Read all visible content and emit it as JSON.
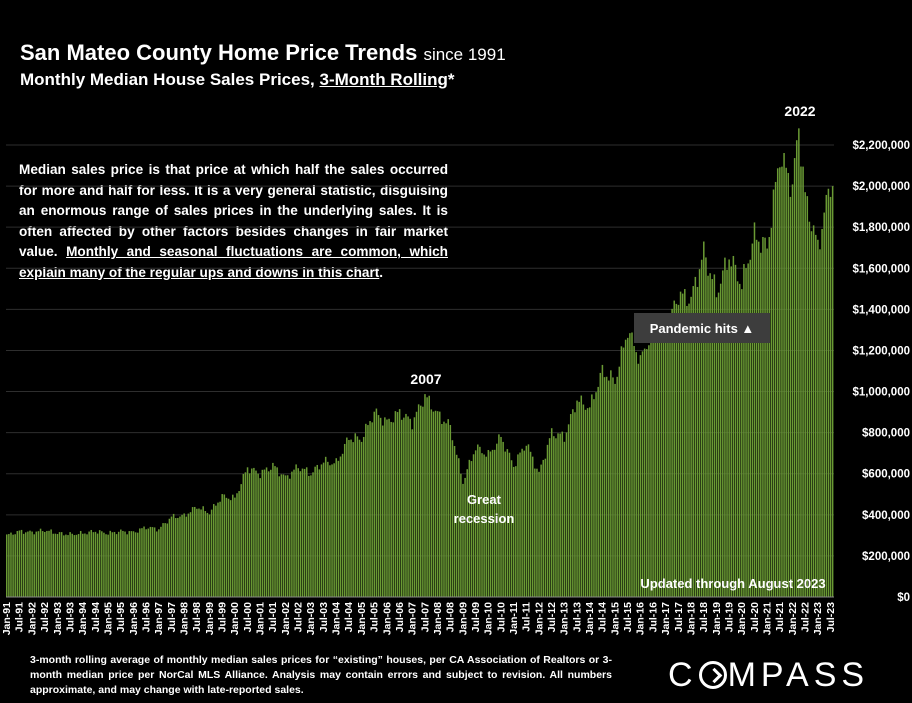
{
  "title": {
    "main": "San Mateo County Home Price Trends",
    "since": "since 1991",
    "sub_prefix": "Monthly Median House Sales Prices, ",
    "sub_underlined": "3-Month Rolling",
    "sub_suffix": "*"
  },
  "description": {
    "plain": "Median sales price is that price at which half the sales occurred for more and half for less. It is a very general statistic, disguising an enormous range of sales prices in the underlying sales. It is often affected by other factors besides changes in fair market value. ",
    "underlined": "Monthly and seasonal fluctuations are common, which explain many of the regular ups and downs in this chart",
    "end": "."
  },
  "footnote": "3-month rolling average of monthly median sales prices for “existing” houses, per CA Association of Realtors or 3-month median price per NorCal MLS Alliance. Analysis may contain errors and subject to revision. All numbers approximate, and may change with late-reported sales.",
  "logo": {
    "pre": "C",
    "post": "MPASS"
  },
  "chart_data": {
    "type": "bar",
    "series_color": "#6a9a34",
    "x_start": "Jan-91",
    "x_end": "Aug-23",
    "ylim": [
      0,
      2300000
    ],
    "y_ticks": [
      "$0",
      "$200,000",
      "$400,000",
      "$600,000",
      "$800,000",
      "$1,000,000",
      "$1,200,000",
      "$1,400,000",
      "$1,600,000",
      "$1,800,000",
      "$2,000,000",
      "$2,200,000"
    ],
    "x_tick_labels": [
      "Jan-91",
      "Jul-91",
      "Jan-92",
      "Jul-92",
      "Jan-93",
      "Jul-93",
      "Jan-94",
      "Jul-94",
      "Jan-95",
      "Jul-95",
      "Jan-96",
      "Jul-96",
      "Jan-97",
      "Jul-97",
      "Jan-98",
      "Jul-98",
      "Jan-99",
      "Jul-99",
      "Jan-00",
      "Jul-00",
      "Jan-01",
      "Jul-01",
      "Jan-02",
      "Jul-02",
      "Jan-03",
      "Jul-03",
      "Jan-04",
      "Jul-04",
      "Jan-05",
      "Jul-05",
      "Jan-06",
      "Jul-06",
      "Jan-07",
      "Jul-07",
      "Jan-08",
      "Jul-08",
      "Jan-09",
      "Jul-09",
      "Jan-10",
      "Jul-10",
      "Jan-11",
      "Jul-11",
      "Jan-12",
      "Jul-12",
      "Jan-13",
      "Jul-13",
      "Jan-14",
      "Jul-14",
      "Jan-15",
      "Jul-15",
      "Jan-16",
      "Jul-16",
      "Jan-17",
      "Jul-17",
      "Jan-18",
      "Jul-18",
      "Jan-19",
      "Jul-19",
      "Jan-20",
      "Jul-20",
      "Jan-21",
      "Jul-21",
      "Jan-22",
      "Jul-22",
      "Jan-23",
      "Jul-23"
    ],
    "keypoints": [
      [
        "Jan-91",
        300000
      ],
      [
        "Jul-91",
        320000
      ],
      [
        "Jan-92",
        315000
      ],
      [
        "Jul-92",
        325000
      ],
      [
        "Jan-93",
        310000
      ],
      [
        "Jul-93",
        305000
      ],
      [
        "Jan-94",
        310000
      ],
      [
        "Jul-94",
        320000
      ],
      [
        "Jan-95",
        310000
      ],
      [
        "Jul-95",
        320000
      ],
      [
        "Jan-96",
        315000
      ],
      [
        "Jul-96",
        340000
      ],
      [
        "Jan-97",
        330000
      ],
      [
        "Jul-97",
        390000
      ],
      [
        "Jan-98",
        395000
      ],
      [
        "Jul-98",
        440000
      ],
      [
        "Jan-99",
        410000
      ],
      [
        "Jul-99",
        490000
      ],
      [
        "Jan-00",
        480000
      ],
      [
        "Jul-00",
        630000
      ],
      [
        "Jan-01",
        600000
      ],
      [
        "Jul-01",
        640000
      ],
      [
        "Jan-02",
        580000
      ],
      [
        "Jul-02",
        635000
      ],
      [
        "Jan-03",
        600000
      ],
      [
        "Jul-03",
        660000
      ],
      [
        "Jan-04",
        650000
      ],
      [
        "Jul-04",
        775000
      ],
      [
        "Jan-05",
        770000
      ],
      [
        "Jul-05",
        900000
      ],
      [
        "Jan-06",
        850000
      ],
      [
        "Jul-06",
        900000
      ],
      [
        "Jan-07",
        850000
      ],
      [
        "Jul-07",
        980000
      ],
      [
        "Jan-08",
        890000
      ],
      [
        "Jul-08",
        830000
      ],
      [
        "Jan-09",
        560000
      ],
      [
        "Jul-09",
        730000
      ],
      [
        "Jan-10",
        690000
      ],
      [
        "Jul-10",
        780000
      ],
      [
        "Jan-11",
        640000
      ],
      [
        "Jul-11",
        750000
      ],
      [
        "Jan-12",
        600000
      ],
      [
        "Jul-12",
        800000
      ],
      [
        "Jan-13",
        780000
      ],
      [
        "Jul-13",
        960000
      ],
      [
        "Jan-14",
        920000
      ],
      [
        "Jul-14",
        1100000
      ],
      [
        "Jan-15",
        1050000
      ],
      [
        "Jul-15",
        1300000
      ],
      [
        "Jan-16",
        1150000
      ],
      [
        "Jul-16",
        1310000
      ],
      [
        "Jan-17",
        1300000
      ],
      [
        "Jul-17",
        1470000
      ],
      [
        "Jan-18",
        1450000
      ],
      [
        "Jul-18",
        1680000
      ],
      [
        "Jan-19",
        1480000
      ],
      [
        "Jul-19",
        1660000
      ],
      [
        "Jan-20",
        1520000
      ],
      [
        "Jul-20",
        1760000
      ],
      [
        "Jan-21",
        1700000
      ],
      [
        "Jul-21",
        2150000
      ],
      [
        "Jan-22",
        2000000
      ],
      [
        "Apr-22",
        2290000
      ],
      [
        "Jul-22",
        1950000
      ],
      [
        "Jan-23",
        1700000
      ],
      [
        "Jul-23",
        2020000
      ],
      [
        "Aug-23",
        2000000
      ]
    ],
    "annotations": {
      "peak_2007": "2007",
      "peak_2022": "2022",
      "pandemic": "Pandemic hits ▲",
      "recession_line1": "Great",
      "recession_line2": "recession",
      "updated": "Updated through August 2023"
    }
  }
}
